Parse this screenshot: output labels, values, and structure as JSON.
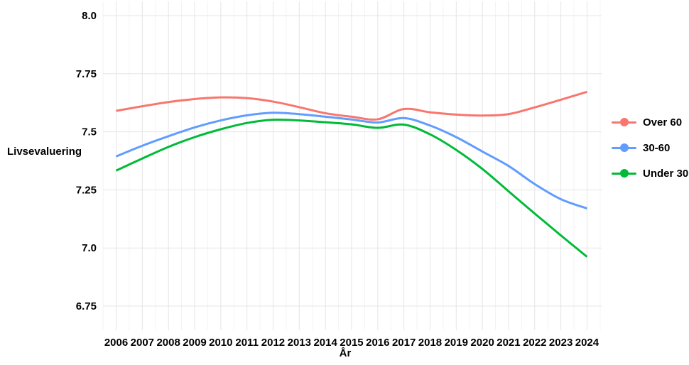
{
  "chart_data": {
    "type": "line",
    "title": "",
    "xlabel": "År",
    "ylabel": "Livsevaluering",
    "x": [
      2006,
      2007,
      2008,
      2009,
      2010,
      2011,
      2012,
      2013,
      2014,
      2015,
      2016,
      2017,
      2018,
      2019,
      2020,
      2021,
      2022,
      2023,
      2024
    ],
    "series": [
      {
        "name": "Over 60",
        "color": "#F8766D",
        "values": [
          7.59,
          7.61,
          7.628,
          7.641,
          7.648,
          7.645,
          7.63,
          7.606,
          7.58,
          7.565,
          7.554,
          7.598,
          7.584,
          7.574,
          7.57,
          7.576,
          7.605,
          7.638,
          7.672
        ]
      },
      {
        "name": "30-60",
        "color": "#619CFF",
        "values": [
          7.394,
          7.44,
          7.481,
          7.519,
          7.549,
          7.571,
          7.582,
          7.576,
          7.565,
          7.553,
          7.54,
          7.559,
          7.527,
          7.477,
          7.415,
          7.353,
          7.275,
          7.21,
          7.17
        ]
      },
      {
        "name": "Under 30",
        "color": "#00BA38",
        "values": [
          7.333,
          7.385,
          7.435,
          7.477,
          7.511,
          7.538,
          7.552,
          7.549,
          7.541,
          7.532,
          7.517,
          7.531,
          7.489,
          7.422,
          7.34,
          7.244,
          7.148,
          7.054,
          6.962
        ]
      }
    ],
    "y_ticks": [
      6.75,
      7.0,
      7.25,
      7.5,
      7.75,
      8.0
    ],
    "y_tick_labels": [
      "6.75",
      "7.0",
      "7.25",
      "7.5",
      "7.75",
      "8.0"
    ],
    "x_tick_labels": [
      "2006",
      "2007",
      "2008",
      "2009",
      "2010",
      "2011",
      "2012",
      "2013",
      "2014",
      "2015",
      "2016",
      "2017",
      "2018",
      "2019",
      "2020",
      "2021",
      "2022",
      "2023",
      "2024"
    ],
    "ylim": [
      6.65,
      8.06
    ],
    "xlim": [
      2005.5,
      2024.5
    ],
    "grid": true,
    "legend_position": "right",
    "colors": {
      "background": "#ffffff",
      "major_gridline": "#e5e5e9",
      "minor_gridline": "#f3f3f6",
      "tick_text": "#000000"
    }
  }
}
